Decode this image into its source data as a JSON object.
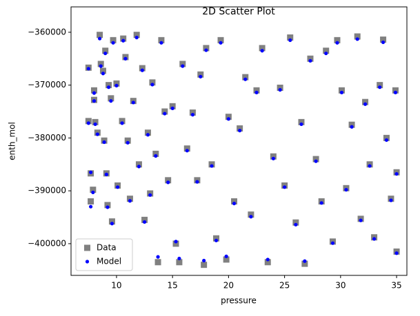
{
  "chart_data": {
    "type": "scatter",
    "title": "2D Scatter Plot",
    "xlabel": "pressure",
    "ylabel": "enth_mol",
    "x": [
      7.5,
      7.5,
      7.7,
      7.7,
      7.9,
      8.0,
      8.0,
      8.1,
      8.3,
      8.5,
      8.6,
      8.8,
      8.9,
      9.0,
      9.1,
      9.2,
      9.3,
      9.5,
      9.6,
      9.7,
      10.0,
      10.1,
      10.5,
      10.6,
      10.8,
      11.0,
      11.2,
      11.5,
      11.8,
      12.0,
      12.3,
      12.5,
      12.8,
      13.0,
      13.2,
      13.5,
      13.7,
      14.0,
      14.3,
      14.6,
      15.0,
      15.3,
      15.6,
      15.9,
      16.3,
      16.8,
      17.2,
      17.5,
      17.8,
      18.0,
      18.5,
      18.9,
      19.3,
      19.8,
      20.0,
      20.5,
      21.0,
      21.5,
      22.0,
      22.5,
      23.0,
      23.5,
      24.0,
      24.6,
      25.0,
      25.5,
      26.0,
      26.5,
      26.8,
      27.3,
      27.8,
      28.3,
      28.7,
      29.3,
      29.7,
      30.1,
      30.5,
      31.0,
      31.5,
      31.8,
      32.2,
      32.6,
      33.0,
      33.5,
      33.8,
      34.1,
      34.5,
      34.9,
      35.0,
      35.0
    ],
    "series": [
      {
        "name": "Data",
        "color": "#808080",
        "marker": "square",
        "values": [
          -366700,
          -376800,
          -392000,
          -386700,
          -389800,
          -372800,
          -371000,
          -377000,
          -379000,
          -360500,
          -366000,
          -367300,
          -380500,
          -363500,
          -386700,
          -392700,
          -370000,
          -372500,
          -395800,
          -361500,
          -369700,
          -389000,
          -376800,
          -361200,
          -364700,
          -380500,
          -391500,
          -373000,
          -360500,
          -385000,
          -366800,
          -395500,
          -379000,
          -390500,
          -369500,
          -383000,
          -403500,
          -361500,
          -375000,
          -388000,
          -374000,
          -400000,
          -403500,
          -366000,
          -382000,
          -375200,
          -388000,
          -368000,
          -404000,
          -363000,
          -385000,
          -399000,
          -361500,
          -403000,
          -376000,
          -392000,
          -378200,
          -368500,
          -394500,
          -371000,
          -363000,
          -403500,
          -383500,
          -370500,
          -389000,
          -361000,
          -396000,
          -377000,
          -403800,
          -365000,
          -384000,
          -392000,
          -363500,
          -399600,
          -361500,
          -371000,
          -389500,
          -377500,
          -360800,
          -395300,
          -373200,
          -385000,
          -398800,
          -370000,
          -361400,
          -380000,
          -391500,
          -371000,
          -386500,
          -401500
        ]
      },
      {
        "name": "Model",
        "color": "#0000ff",
        "marker": "circle",
        "values": [
          -366900,
          -377200,
          -393000,
          -386500,
          -390300,
          -373000,
          -371500,
          -377400,
          -379300,
          -361200,
          -366400,
          -367800,
          -380800,
          -364000,
          -386900,
          -393100,
          -370400,
          -373000,
          -396200,
          -362000,
          -370100,
          -389300,
          -377200,
          -361600,
          -365000,
          -380900,
          -391900,
          -373300,
          -361000,
          -385400,
          -367200,
          -395900,
          -379400,
          -390800,
          -369900,
          -383400,
          -402500,
          -362000,
          -375400,
          -388400,
          -374400,
          -399600,
          -402800,
          -366400,
          -382400,
          -375600,
          -388300,
          -368400,
          -403200,
          -363400,
          -385300,
          -399400,
          -362000,
          -402400,
          -376400,
          -392400,
          -378600,
          -368900,
          -394900,
          -371400,
          -363500,
          -403000,
          -383900,
          -370900,
          -389300,
          -361500,
          -396400,
          -377400,
          -403300,
          -365400,
          -384400,
          -392300,
          -364000,
          -399900,
          -362000,
          -371400,
          -389800,
          -377900,
          -361300,
          -395600,
          -373600,
          -385300,
          -399100,
          -370400,
          -361900,
          -380400,
          -391800,
          -371400,
          -386800,
          -401800
        ]
      }
    ],
    "xlim": [
      5.94,
      35.92
    ],
    "xticks": [
      10,
      15,
      20,
      25,
      30,
      35
    ],
    "ylim": [
      -406000,
      -355200
    ],
    "yticks": [
      {
        "value": -400000,
        "label": "−400000"
      },
      {
        "value": -390000,
        "label": "−390000"
      },
      {
        "value": -380000,
        "label": "−380000"
      },
      {
        "value": -370000,
        "label": "−370000"
      },
      {
        "value": -360000,
        "label": "−360000"
      }
    ],
    "legend": "lower left"
  }
}
